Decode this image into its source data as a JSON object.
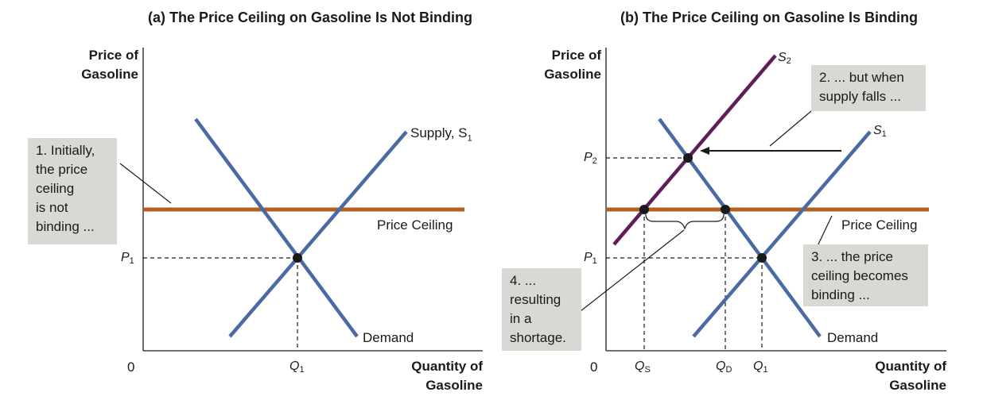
{
  "colors": {
    "supply_demand": "#4a6aa3",
    "supply_s2": "#5e1e5a",
    "price_ceiling": "#b35f22",
    "callout_bg": "#d9d8d4",
    "axis": "#1a1a1a"
  },
  "panel_a": {
    "title": "(a) The Price Ceiling on Gasoline Is Not Binding",
    "y_axis_label_1": "Price of",
    "y_axis_label_2": "Gasoline",
    "x_axis_label_1": "Quantity of",
    "x_axis_label_2": "Gasoline",
    "origin": "0",
    "supply_label": "Supply, S",
    "supply_sub": "1",
    "demand_label": "Demand",
    "ceiling_label": "Price Ceiling",
    "p1": "P",
    "p1_sub": "1",
    "q1": "Q",
    "q1_sub": "1",
    "callout": [
      "1. Initially,",
      "the price",
      "ceiling",
      "is not",
      "binding ..."
    ]
  },
  "panel_b": {
    "title": "(b) The Price Ceiling on Gasoline Is Binding",
    "y_axis_label_1": "Price of",
    "y_axis_label_2": "Gasoline",
    "x_axis_label_1": "Quantity of",
    "x_axis_label_2": "Gasoline",
    "origin": "0",
    "s2": "S",
    "s2_sub": "2",
    "s1": "S",
    "s1_sub": "1",
    "demand_label": "Demand",
    "ceiling_label": "Price Ceiling",
    "p2": "P",
    "p2_sub": "2",
    "p1": "P",
    "p1_sub": "1",
    "qs": "Q",
    "qs_sub": "S",
    "qd": "Q",
    "qd_sub": "D",
    "q1": "Q",
    "q1_sub": "1",
    "callout_2": [
      "2. ... but when",
      "supply falls ..."
    ],
    "callout_3": [
      "3. ... the price",
      "ceiling becomes",
      "binding ..."
    ],
    "callout_4": [
      "4. ...",
      "resulting",
      "in a",
      "shortage."
    ]
  }
}
